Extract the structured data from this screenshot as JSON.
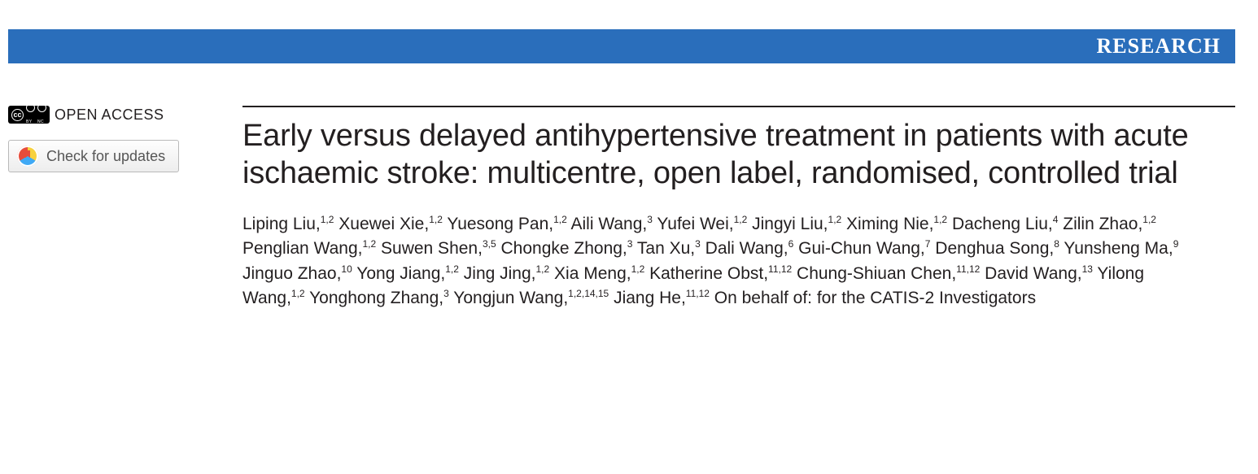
{
  "banner": {
    "label": "RESEARCH",
    "bg_color": "#2a6ebb",
    "text_color": "#ffffff"
  },
  "sidebar": {
    "open_access_label": "OPEN ACCESS",
    "cc_icons": [
      "CC",
      "BY",
      "NC"
    ],
    "updates_label": "Check for updates"
  },
  "article": {
    "title": "Early versus delayed antihypertensive treatment in patients with acute ischaemic stroke: multicentre, open label, randomised, controlled trial",
    "authors": [
      {
        "name": "Liping Liu",
        "aff": "1,2"
      },
      {
        "name": "Xuewei Xie",
        "aff": "1,2"
      },
      {
        "name": "Yuesong Pan",
        "aff": "1,2"
      },
      {
        "name": "Aili Wang",
        "aff": "3"
      },
      {
        "name": "Yufei Wei",
        "aff": "1,2"
      },
      {
        "name": "Jingyi Liu",
        "aff": "1,2"
      },
      {
        "name": "Ximing Nie",
        "aff": "1,2"
      },
      {
        "name": "Dacheng Liu",
        "aff": "4"
      },
      {
        "name": "Zilin Zhao",
        "aff": "1,2"
      },
      {
        "name": "Penglian Wang",
        "aff": "1,2"
      },
      {
        "name": "Suwen Shen",
        "aff": "3,5"
      },
      {
        "name": "Chongke Zhong",
        "aff": "3"
      },
      {
        "name": "Tan Xu",
        "aff": "3"
      },
      {
        "name": "Dali Wang",
        "aff": "6"
      },
      {
        "name": "Gui-Chun Wang",
        "aff": "7"
      },
      {
        "name": "Denghua Song",
        "aff": "8"
      },
      {
        "name": "Yunsheng Ma",
        "aff": "9"
      },
      {
        "name": "Jinguo Zhao",
        "aff": "10"
      },
      {
        "name": "Yong Jiang",
        "aff": "1,2"
      },
      {
        "name": "Jing Jing",
        "aff": "1,2"
      },
      {
        "name": "Xia Meng",
        "aff": "1,2"
      },
      {
        "name": "Katherine Obst",
        "aff": "11,12"
      },
      {
        "name": "Chung-Shiuan Chen",
        "aff": "11,12"
      },
      {
        "name": "David Wang",
        "aff": "13"
      },
      {
        "name": "Yilong Wang",
        "aff": "1,2"
      },
      {
        "name": "Yonghong Zhang",
        "aff": "3"
      },
      {
        "name": "Yongjun Wang",
        "aff": "1,2,14,15"
      },
      {
        "name": "Jiang He",
        "aff": "11,12"
      }
    ],
    "group_statement": "On behalf of: for the CATIS-2 Investigators"
  },
  "style": {
    "title_fontsize": 38,
    "author_fontsize": 21,
    "title_color": "#231f20",
    "rule_color": "#231f20"
  }
}
